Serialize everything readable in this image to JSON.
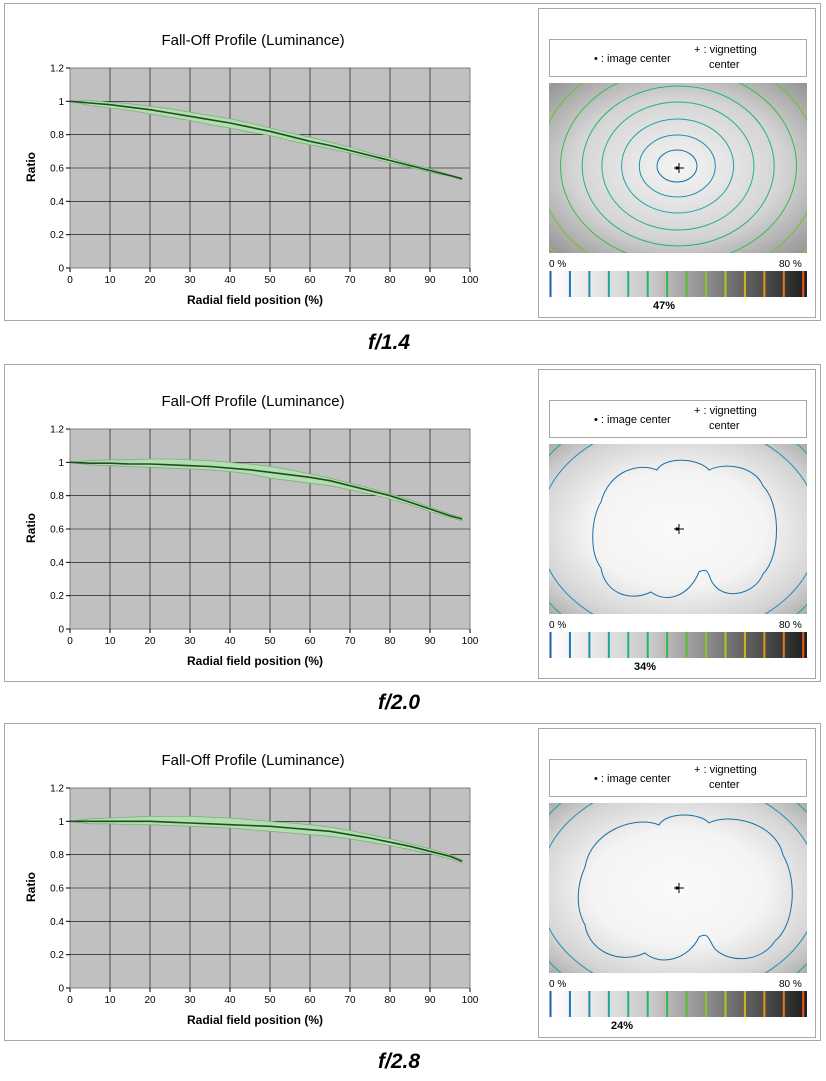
{
  "panels": [
    {
      "fstop": "f/1.4",
      "percent": "47%",
      "map_style": "rings",
      "chart_data": {
        "type": "area",
        "title": "Fall-Off Profile (Luminance)",
        "xlabel": "Radial field position (%)",
        "ylabel": "Ratio",
        "xlim": [
          0,
          100
        ],
        "ylim": [
          0,
          1.2
        ],
        "xticks": [
          "0",
          "10",
          "20",
          "30",
          "40",
          "50",
          "60",
          "70",
          "80",
          "90",
          "100"
        ],
        "yticks": [
          "0",
          "0.2",
          "0.4",
          "0.6",
          "0.8",
          "1",
          "1.2"
        ],
        "grid": true,
        "x": [
          0,
          5,
          10,
          15,
          20,
          25,
          30,
          35,
          40,
          45,
          50,
          55,
          60,
          65,
          70,
          75,
          80,
          85,
          90,
          95,
          98
        ],
        "center": [
          1.0,
          0.99,
          0.98,
          0.965,
          0.95,
          0.93,
          0.91,
          0.89,
          0.87,
          0.845,
          0.82,
          0.79,
          0.76,
          0.735,
          0.705,
          0.675,
          0.645,
          0.615,
          0.585,
          0.555,
          0.535
        ],
        "upper": [
          1.0,
          1.005,
          0.995,
          0.985,
          0.97,
          0.955,
          0.935,
          0.915,
          0.895,
          0.87,
          0.84,
          0.81,
          0.785,
          0.755,
          0.725,
          0.69,
          0.66,
          0.625,
          0.595,
          0.56,
          0.54
        ],
        "lower": [
          1.0,
          0.975,
          0.96,
          0.945,
          0.925,
          0.905,
          0.885,
          0.86,
          0.84,
          0.815,
          0.795,
          0.765,
          0.74,
          0.715,
          0.69,
          0.66,
          0.63,
          0.605,
          0.575,
          0.55,
          0.53
        ]
      }
    },
    {
      "fstop": "f/2.0",
      "percent": "34%",
      "map_style": "blob",
      "chart_data": {
        "type": "area",
        "title": "Fall-Off Profile (Luminance)",
        "xlabel": "Radial field position (%)",
        "ylabel": "Ratio",
        "xlim": [
          0,
          100
        ],
        "ylim": [
          0,
          1.2
        ],
        "xticks": [
          "0",
          "10",
          "20",
          "30",
          "40",
          "50",
          "60",
          "70",
          "80",
          "90",
          "100"
        ],
        "yticks": [
          "0",
          "0.2",
          "0.4",
          "0.6",
          "0.8",
          "1",
          "1.2"
        ],
        "grid": true,
        "x": [
          0,
          5,
          10,
          15,
          20,
          25,
          30,
          35,
          40,
          45,
          50,
          55,
          60,
          65,
          70,
          75,
          80,
          85,
          90,
          95,
          98
        ],
        "center": [
          1.0,
          0.995,
          0.995,
          0.99,
          0.99,
          0.985,
          0.98,
          0.975,
          0.965,
          0.955,
          0.94,
          0.925,
          0.91,
          0.89,
          0.86,
          0.83,
          0.8,
          0.76,
          0.72,
          0.68,
          0.66
        ],
        "upper": [
          1.0,
          1.01,
          1.015,
          1.015,
          1.02,
          1.02,
          1.015,
          1.01,
          1.0,
          0.99,
          0.975,
          0.955,
          0.93,
          0.905,
          0.875,
          0.845,
          0.81,
          0.775,
          0.73,
          0.69,
          0.67
        ],
        "lower": [
          1.0,
          0.985,
          0.98,
          0.975,
          0.97,
          0.965,
          0.96,
          0.955,
          0.945,
          0.93,
          0.905,
          0.89,
          0.875,
          0.86,
          0.835,
          0.81,
          0.78,
          0.745,
          0.705,
          0.67,
          0.65
        ]
      }
    },
    {
      "fstop": "f/2.8",
      "percent": "24%",
      "map_style": "blob",
      "chart_data": {
        "type": "area",
        "title": "Fall-Off Profile (Luminance)",
        "xlabel": "Radial field position (%)",
        "ylabel": "Ratio",
        "xlim": [
          0,
          100
        ],
        "ylim": [
          0,
          1.2
        ],
        "xticks": [
          "0",
          "10",
          "20",
          "30",
          "40",
          "50",
          "60",
          "70",
          "80",
          "90",
          "100"
        ],
        "yticks": [
          "0",
          "0.2",
          "0.4",
          "0.6",
          "0.8",
          "1",
          "1.2"
        ],
        "grid": true,
        "x": [
          0,
          5,
          10,
          15,
          20,
          25,
          30,
          35,
          40,
          45,
          50,
          55,
          60,
          65,
          70,
          75,
          80,
          85,
          90,
          95,
          98
        ],
        "center": [
          1.0,
          1.0,
          1.0,
          1.0,
          1.0,
          0.995,
          0.99,
          0.985,
          0.98,
          0.975,
          0.97,
          0.96,
          0.95,
          0.94,
          0.92,
          0.9,
          0.875,
          0.85,
          0.82,
          0.79,
          0.76
        ],
        "upper": [
          1.0,
          1.015,
          1.02,
          1.025,
          1.03,
          1.03,
          1.03,
          1.025,
          1.02,
          1.01,
          1.0,
          0.99,
          0.98,
          0.965,
          0.945,
          0.92,
          0.895,
          0.865,
          0.835,
          0.8,
          0.77
        ],
        "lower": [
          1.0,
          0.985,
          0.985,
          0.98,
          0.98,
          0.975,
          0.97,
          0.965,
          0.96,
          0.95,
          0.94,
          0.93,
          0.92,
          0.91,
          0.895,
          0.875,
          0.855,
          0.83,
          0.805,
          0.775,
          0.75
        ]
      }
    }
  ],
  "legend": {
    "center_text": "• : image center",
    "vig_text_l1": "+ : vignetting",
    "vig_text_l2": "center"
  },
  "scale": {
    "left_label": "0 %",
    "right_label": "80 %",
    "ticks": [
      {
        "color": "#1a5fb0"
      },
      {
        "color": "#1a7ab8"
      },
      {
        "color": "#1f90b0"
      },
      {
        "color": "#1aa5a0"
      },
      {
        "color": "#1fb38a"
      },
      {
        "color": "#20b870"
      },
      {
        "color": "#30b84a"
      },
      {
        "color": "#58c030"
      },
      {
        "color": "#86c820"
      },
      {
        "color": "#b0c818"
      },
      {
        "color": "#d0b818"
      },
      {
        "color": "#e09818"
      },
      {
        "color": "#e87818"
      },
      {
        "color": "#e85818"
      }
    ]
  },
  "colors": {
    "plot_bg": "#c0c0c0",
    "band_fill": "#b2deb2",
    "band_edge": "#7fb07f",
    "line": "#1f4f1f"
  }
}
